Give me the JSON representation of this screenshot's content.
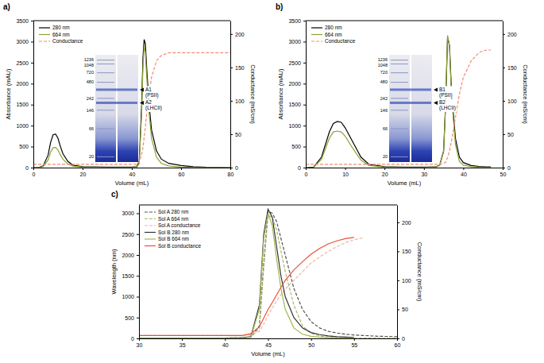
{
  "chart_data": [
    {
      "type": "line",
      "title": "a)",
      "x_label": "Volume (mL)",
      "y_label": "Absorbance (mAU)",
      "y2_label": "Conductance (mS/cm)",
      "xlim": [
        0,
        80
      ],
      "xticks": [
        0,
        20,
        40,
        60,
        80
      ],
      "ylim": [
        0,
        3500
      ],
      "yticks": [
        0,
        500,
        1000,
        1500,
        2000,
        2500,
        3000,
        3500
      ],
      "y2lim": [
        0,
        220
      ],
      "y2ticks": [
        0,
        50,
        100,
        150,
        200
      ],
      "legend": "top-left",
      "x": [
        0,
        2,
        4,
        6,
        7,
        8,
        9,
        10,
        11,
        12,
        14,
        16,
        20,
        30,
        40,
        42,
        43,
        44,
        44.5,
        45,
        45.5,
        46,
        47,
        48,
        50,
        52,
        55,
        60,
        65,
        70,
        80
      ],
      "series": [
        {
          "name": "280 nm",
          "color": "#000000",
          "line_style": "solid",
          "values": [
            0,
            0,
            40,
            300,
            600,
            780,
            800,
            700,
            500,
            330,
            150,
            60,
            20,
            10,
            10,
            20,
            150,
            1500,
            2600,
            3050,
            2950,
            2400,
            1500,
            900,
            400,
            200,
            100,
            50,
            20,
            10,
            5
          ]
        },
        {
          "name": "664 nm",
          "color": "#8ca232",
          "line_style": "solid",
          "values": [
            0,
            0,
            25,
            180,
            370,
            470,
            480,
            420,
            300,
            200,
            90,
            35,
            10,
            5,
            5,
            10,
            100,
            1300,
            2400,
            2900,
            2750,
            2200,
            1300,
            700,
            250,
            100,
            40,
            10,
            5,
            5,
            3
          ]
        },
        {
          "name": "Conductance",
          "color": "#f08c78",
          "line_style": "dashed",
          "axis": "y2",
          "values": [
            5,
            5,
            5,
            5,
            5,
            5,
            5,
            5,
            5,
            5,
            5,
            5,
            5,
            5,
            5,
            5,
            8,
            20,
            30,
            45,
            60,
            80,
            110,
            135,
            160,
            168,
            172,
            172,
            172,
            172,
            172
          ]
        }
      ],
      "inset": {
        "type": "gel",
        "log": "y",
        "ylim": [
          1400,
          16
        ],
        "ladder": [
          1236,
          1048,
          720,
          480,
          242,
          146,
          66,
          20
        ],
        "bands": [
          {
            "label": "A1 (PSII)",
            "value": 350
          },
          {
            "label": "A2 (LHCII)",
            "value": 200
          }
        ]
      }
    },
    {
      "type": "line",
      "title": "b)",
      "x_label": "Volume (mL)",
      "y_label": "Absorbance (mAU)",
      "y2_label": "Conductance (mS/cm)",
      "xlim": [
        0,
        50
      ],
      "xticks": [
        0,
        10,
        20,
        30,
        40,
        50
      ],
      "ylim": [
        0,
        3500
      ],
      "yticks": [
        0,
        500,
        1000,
        1500,
        2000,
        2500,
        3000,
        3500
      ],
      "y2lim": [
        0,
        220
      ],
      "y2ticks": [
        0,
        50,
        100,
        150,
        200
      ],
      "legend": "top-left",
      "x": [
        0,
        2,
        4,
        6,
        7,
        8,
        9,
        10,
        12,
        14,
        16,
        20,
        25,
        30,
        33,
        34,
        35,
        35.5,
        36,
        36.5,
        37,
        38,
        39,
        40,
        42,
        44,
        45,
        46,
        47
      ],
      "series": [
        {
          "name": "280 nm",
          "color": "#000000",
          "line_style": "solid",
          "values": [
            0,
            10,
            250,
            850,
            1050,
            1100,
            1080,
            950,
            600,
            250,
            80,
            20,
            10,
            10,
            15,
            60,
            400,
            1500,
            3100,
            2900,
            1800,
            700,
            250,
            120,
            50,
            25,
            20,
            15,
            15
          ]
        },
        {
          "name": "664 nm",
          "color": "#8ca232",
          "line_style": "solid",
          "values": [
            0,
            5,
            200,
            700,
            850,
            870,
            850,
            750,
            450,
            180,
            50,
            10,
            5,
            5,
            10,
            50,
            380,
            1500,
            3150,
            2900,
            1700,
            550,
            150,
            60,
            20,
            10,
            5,
            5,
            5
          ]
        },
        {
          "name": "Conductance",
          "color": "#f08c78",
          "line_style": "dashed",
          "axis": "y2",
          "values": [
            5,
            5,
            5,
            5,
            5,
            5,
            5,
            5,
            5,
            5,
            5,
            5,
            5,
            5,
            5,
            5,
            6,
            8,
            15,
            25,
            40,
            75,
            110,
            135,
            160,
            172,
            175,
            176,
            176
          ]
        }
      ],
      "inset": {
        "type": "gel",
        "log": "y",
        "ylim": [
          1400,
          16
        ],
        "ladder": [
          1236,
          1048,
          720,
          480,
          242,
          146,
          66,
          20
        ],
        "bands": [
          {
            "label": "B1 (PSII)",
            "value": 350
          },
          {
            "label": "B2 (LHCII)",
            "value": 200
          }
        ]
      }
    },
    {
      "type": "line",
      "title": "c)",
      "x_label": "Volume (mL)",
      "y_label": "Wavelength (nm)",
      "y2_label": "Conductance (mS/cm)",
      "xlim": [
        30,
        60
      ],
      "xticks": [
        30,
        35,
        40,
        45,
        50,
        55,
        60
      ],
      "ylim": [
        0,
        3200
      ],
      "yticks": [
        0,
        500,
        1000,
        1500,
        2000,
        2500,
        3000
      ],
      "y2lim": [
        0,
        230
      ],
      "y2ticks": [
        0,
        50,
        100,
        150,
        200
      ],
      "legend": "top-left",
      "x": [
        30,
        35,
        40,
        42,
        43,
        44,
        44.5,
        45,
        45.5,
        46,
        46.5,
        47,
        48,
        49,
        50,
        51,
        52,
        53,
        54,
        55,
        56,
        58,
        60
      ],
      "series": [
        {
          "name": "Sol A 280 nm",
          "color": "#555555",
          "line_style": "dashed",
          "values": [
            10,
            10,
            10,
            15,
            30,
            300,
            1800,
            3050,
            3000,
            2800,
            2400,
            2000,
            1200,
            700,
            400,
            250,
            170,
            130,
            100,
            80,
            70,
            50,
            40
          ]
        },
        {
          "name": "Sol A 664 nm",
          "color": "#a5b86a",
          "line_style": "dashed",
          "values": [
            5,
            5,
            5,
            10,
            25,
            250,
            1700,
            2950,
            2900,
            2600,
            2100,
            1600,
            800,
            300,
            120,
            60,
            30,
            20,
            15,
            10,
            10,
            5,
            5
          ]
        },
        {
          "name": "Sol A conductance",
          "color": "#f4b4a4",
          "line_style": "dashed",
          "axis": "y2",
          "values": [
            5,
            5,
            5,
            5,
            6,
            12,
            25,
            40,
            52,
            65,
            75,
            85,
            100,
            115,
            130,
            140,
            150,
            158,
            165,
            170,
            173,
            null,
            null
          ]
        },
        {
          "name": "Sol B 280 nm",
          "color": "#333333",
          "line_style": "solid",
          "values": [
            10,
            10,
            10,
            15,
            40,
            800,
            2500,
            3100,
            2900,
            2200,
            1500,
            1000,
            500,
            250,
            140,
            90,
            60,
            40,
            30,
            20,
            null,
            null,
            null
          ]
        },
        {
          "name": "Sol B 664 nm",
          "color": "#a0b850",
          "line_style": "solid",
          "values": [
            5,
            5,
            5,
            10,
            30,
            700,
            2400,
            3000,
            2700,
            1900,
            1200,
            700,
            250,
            100,
            50,
            30,
            20,
            10,
            5,
            5,
            null,
            null,
            null
          ]
        },
        {
          "name": "Sol B conductance",
          "color": "#e8503c",
          "line_style": "solid",
          "axis": "y2",
          "values": [
            5,
            5,
            5,
            5,
            8,
            20,
            35,
            50,
            62,
            75,
            88,
            100,
            118,
            132,
            145,
            155,
            163,
            168,
            172,
            174,
            null,
            null,
            null
          ]
        }
      ]
    }
  ]
}
